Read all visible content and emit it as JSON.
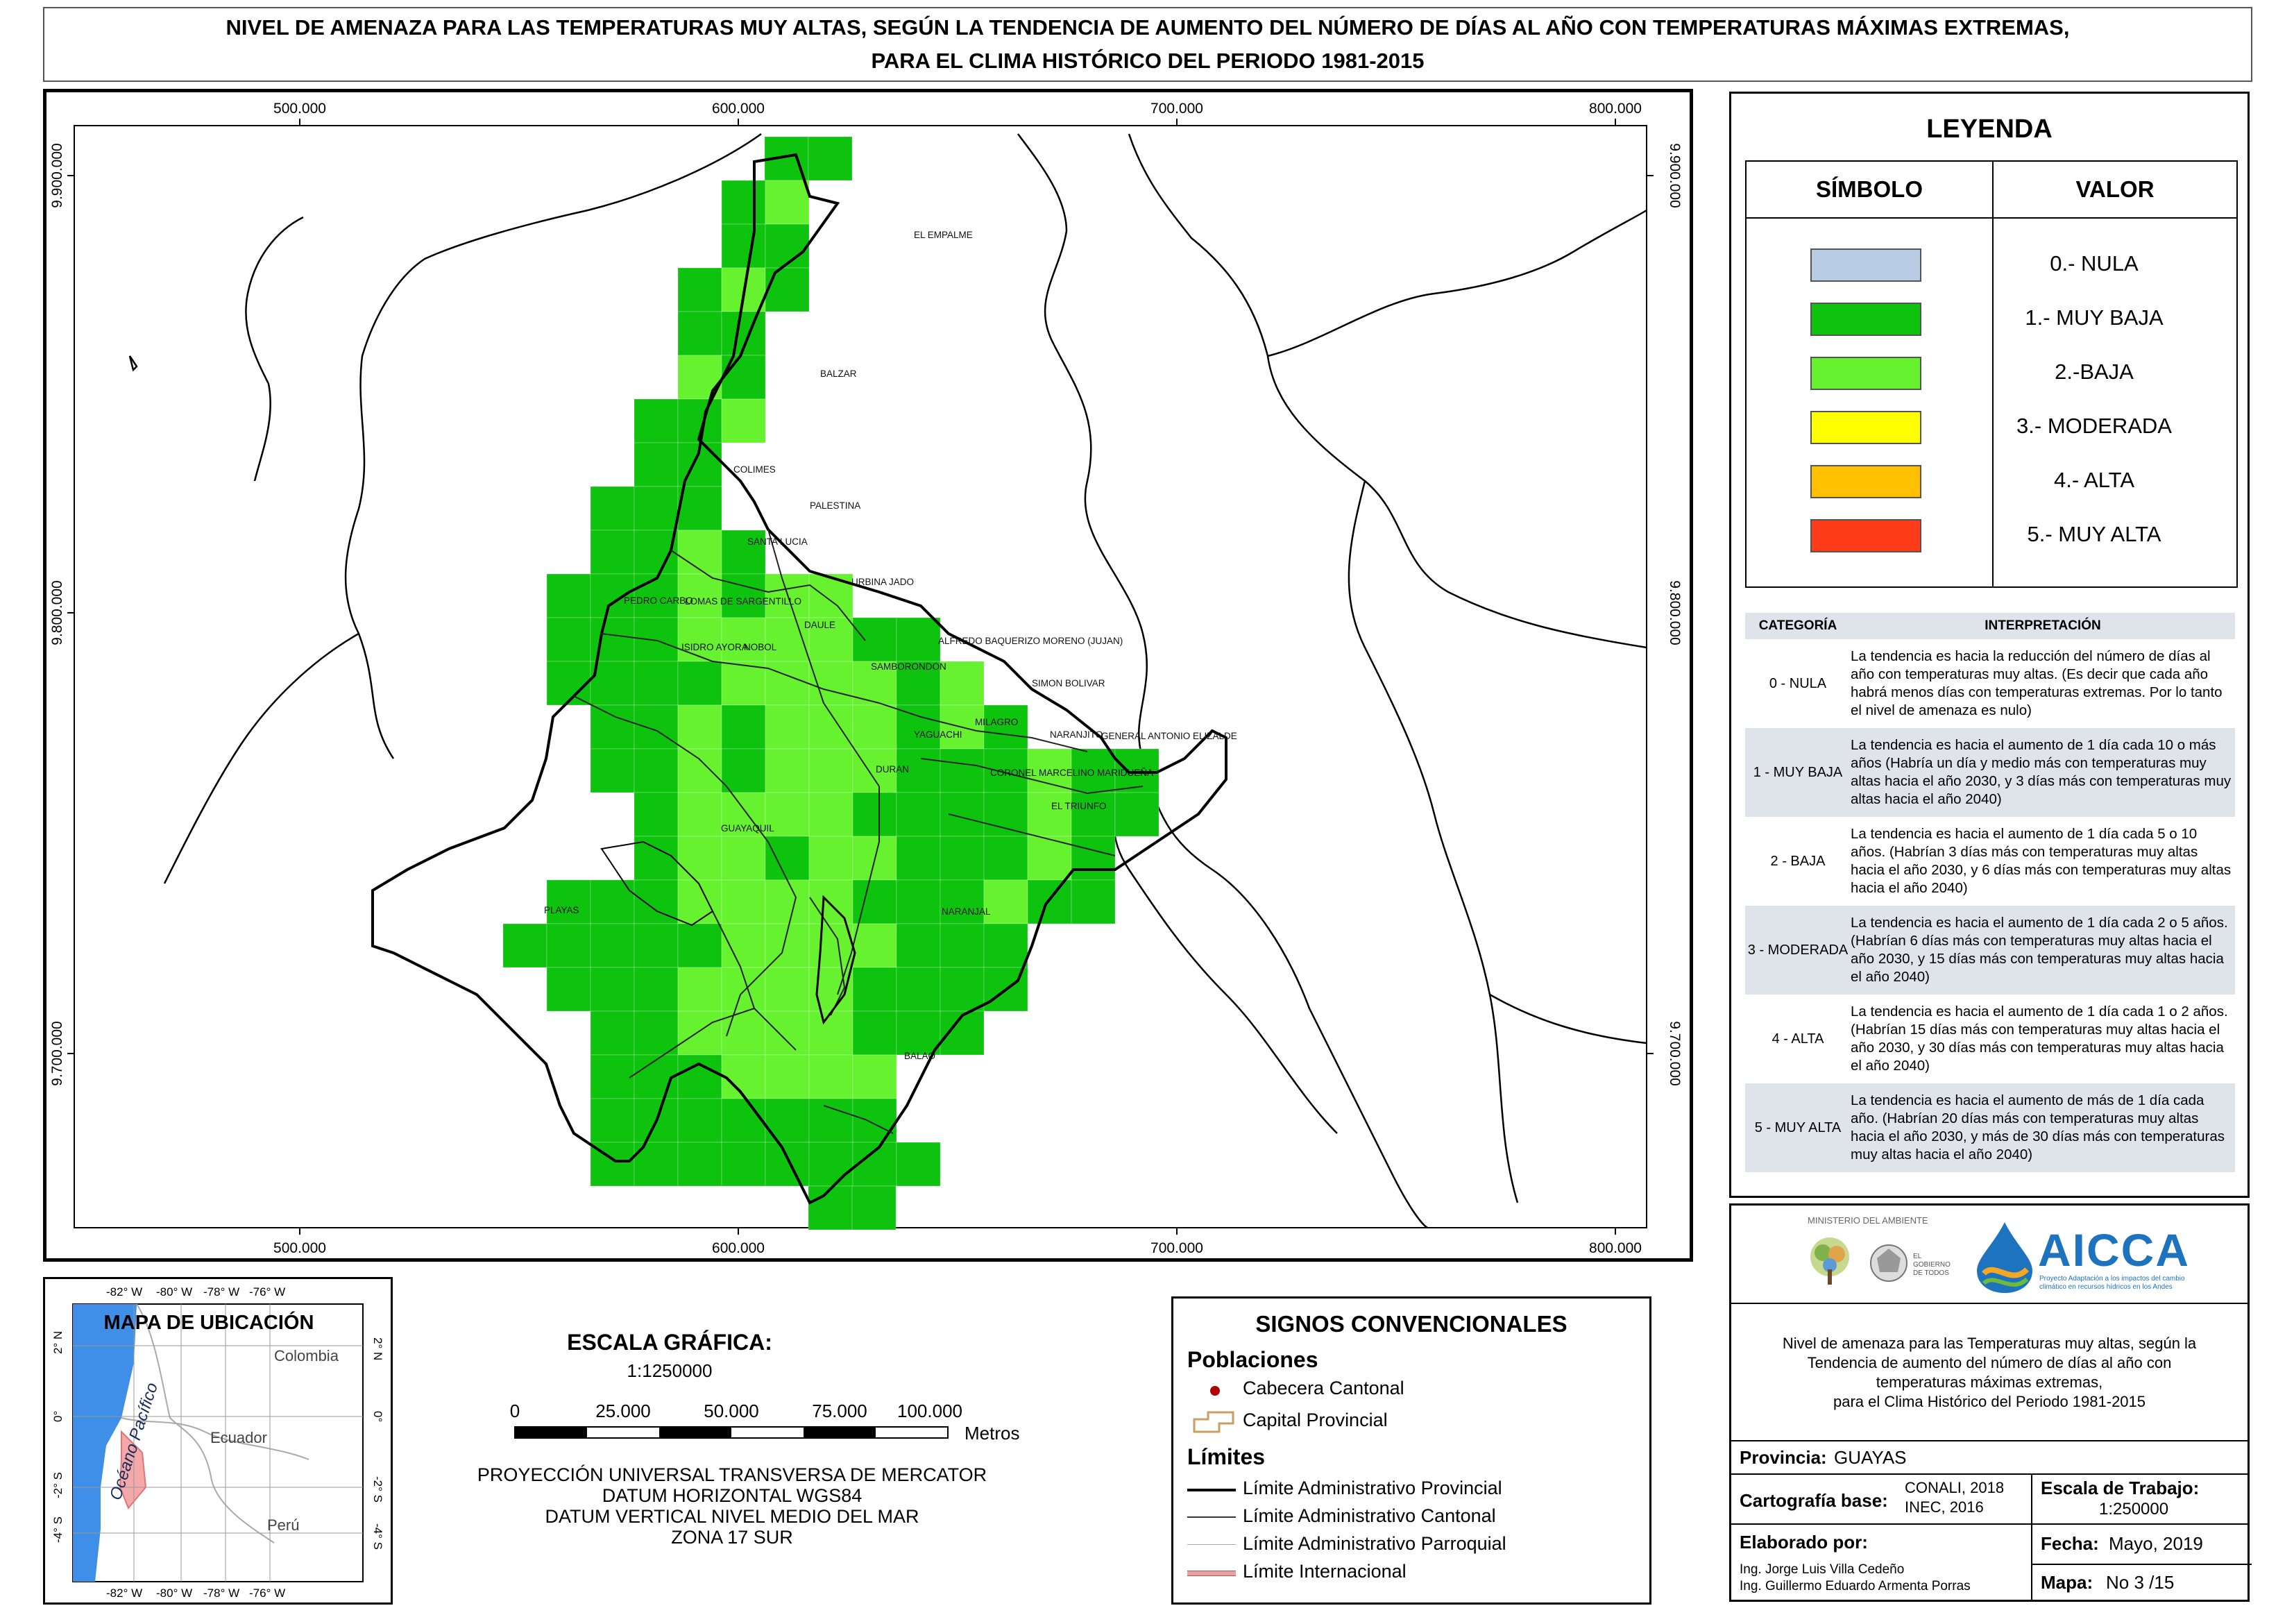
{
  "title": {
    "line1": "NIVEL DE AMENAZA PARA LAS TEMPERATURAS MUY ALTAS, SEGÚN LA TENDENCIA DE AUMENTO DEL NÚMERO DE DÍAS AL AÑO CON TEMPERATURAS MÁXIMAS EXTREMAS,",
    "line2": "PARA EL CLIMA HISTÓRICO DEL PERIODO 1981-2015"
  },
  "map": {
    "grid_x_labels": [
      "500.000",
      "600.000",
      "700.000",
      "800.000"
    ],
    "grid_y_labels": [
      "9.900.000",
      "9.800.000",
      "9.700.000"
    ],
    "places": [
      "EL EMPALME",
      "BALZAR",
      "COLIMES",
      "PALESTINA",
      "SANTA LUCIA",
      "PEDRO CARBO",
      "LOMAS DE SARGENTILLO",
      "URBINA JADO",
      "DAULE",
      "ISIDRO AYORA",
      "NOBOL",
      "ALFREDO BAQUERIZO MORENO (JUJAN)",
      "SAMBORONDON",
      "SIMON BOLIVAR",
      "MILAGRO",
      "YAGUACHI",
      "NARANJITO",
      "GENERAL ANTONIO ELIZALDE",
      "DURAN",
      "CORONEL MARCELINO MARIDUEÑA",
      "EL TRIUNFO",
      "GUAYAQUIL",
      "PLAYAS",
      "NARANJAL",
      "BALAO"
    ],
    "colors": {
      "muy_baja": "#0ec30e",
      "baja": "#66f22f",
      "border": "#000000"
    }
  },
  "legend": {
    "title": "LEYENDA",
    "col_symbol": "SÍMBOLO",
    "col_value": "VALOR",
    "items": [
      {
        "label": "0.- NULA",
        "color": "#b8cce4"
      },
      {
        "label": "1.- MUY BAJA",
        "color": "#0ec30e"
      },
      {
        "label": "2.-BAJA",
        "color": "#66f22f"
      },
      {
        "label": "3.- MODERADA",
        "color": "#ffff00"
      },
      {
        "label": "4.- ALTA",
        "color": "#ffc000"
      },
      {
        "label": "5.- MUY ALTA",
        "color": "#ff3c1a"
      }
    ],
    "interp_head_cat": "CATEGORÍA",
    "interp_head_text": "INTERPRETACIÓN",
    "interpretations": [
      {
        "cat": "0 - NULA",
        "text": "La tendencia es hacia la reducción del número de días al año con temperaturas muy altas. (Es decir que cada año habrá menos días con temperaturas extremas. Por lo tanto el nivel de amenaza es nulo)"
      },
      {
        "cat": "1 - MUY BAJA",
        "text": "La tendencia es hacia el aumento de 1 día cada 10 o más años (Habría un día y medio más con temperaturas muy altas hacia el año 2030, y 3 días más con temperaturas muy altas hacia el año 2040)"
      },
      {
        "cat": "2 - BAJA",
        "text": "La tendencia es hacia el aumento de 1 día cada 5 o 10 años. (Habrían 3 días más con temperaturas muy altas hacia el año 2030, y 6 días más con temperaturas muy altas hacia el año 2040)"
      },
      {
        "cat": "3 - MODERADA",
        "text": "La tendencia es hacia el aumento de 1 día cada 2 o 5 años. (Habrían 6 días más con temperaturas muy altas hacia el año 2030, y 15 días más con temperaturas muy altas hacia el año 2040)"
      },
      {
        "cat": "4 - ALTA",
        "text": "La tendencia es hacia el aumento de 1 día cada 1 o 2 años. (Habrían 15 días más con temperaturas muy altas hacia el año 2030, y 30 días más con temperaturas muy altas hacia el año 2040)"
      },
      {
        "cat": "5 - MUY ALTA",
        "text": "La tendencia es hacia el aumento de más de 1 día cada año. (Habrían 20 días más con temperaturas muy altas hacia el año 2030, y más de 30 días más con temperaturas muy altas hacia el año 2040)"
      }
    ]
  },
  "info": {
    "ministry": "MINISTERIO DEL AMBIENTE",
    "gov": "EL GOBIERNO DE TODOS",
    "aicca": "AICCA",
    "aicca_sub": "Proyecto Adaptación a los impactos del cambio climático en recursos hídricos en los Andes",
    "desc_lines": [
      "Nivel de amenaza para las Temperaturas muy altas, según la",
      "Tendencia de aumento del número de días al año con",
      "temperaturas máximas extremas,",
      "para el Clima Histórico del Periodo 1981-2015"
    ],
    "provincia_label": "Provincia:",
    "provincia": "GUAYAS",
    "cartografia_label": "Cartografía base:",
    "cartografia": [
      "CONALI, 2018",
      "INEC, 2016"
    ],
    "escala_label": "Escala de Trabajo:",
    "escala": "1:250000",
    "elaborado_label": "Elaborado por:",
    "elaborado": [
      "Ing. Jorge Luis Villa Cedeño",
      "Ing. Guillermo Eduardo Armenta Porras"
    ],
    "fecha_label": "Fecha:",
    "fecha": "Mayo, 2019",
    "mapa_label": "Mapa:",
    "mapa": "No 3 /15"
  },
  "inset": {
    "title": "MAPA DE UBICACIÓN",
    "top_labels": [
      "-82° W",
      "-80° W",
      "-78° W",
      "-76° W"
    ],
    "side_labels": [
      "2° N",
      "0°",
      "-2° S",
      "-4° S"
    ],
    "countries": [
      "Colombia",
      "Ecuador",
      "Perú"
    ],
    "ocean": "Océano Pacífico",
    "colors": {
      "ocean": "#3f8fe8",
      "province": "#f4a8a8"
    }
  },
  "scale": {
    "title": "ESCALA GRÁFICA:",
    "ratio": "1:1250000",
    "ticks": [
      "0",
      "25.000",
      "50.000",
      "75.000",
      "100.000"
    ],
    "unit": "Metros",
    "projection": [
      "PROYECCIÓN UNIVERSAL TRANSVERSA DE MERCATOR",
      "DATUM HORIZONTAL WGS84",
      "DATUM VERTICAL NIVEL MEDIO DEL MAR",
      "ZONA 17 SUR"
    ]
  },
  "signs": {
    "title": "SIGNOS CONVENCIONALES",
    "poblaciones": "Poblaciones",
    "cabecera": "Cabecera Cantonal",
    "capital": "Capital Provincial",
    "limites": "Límites",
    "lim_prov": "Límite Administrativo Provincial",
    "lim_cant": "Límite Administrativo Cantonal",
    "lim_parr": "Límite Administrativo Parroquial",
    "lim_int": "Límite Internacional"
  }
}
